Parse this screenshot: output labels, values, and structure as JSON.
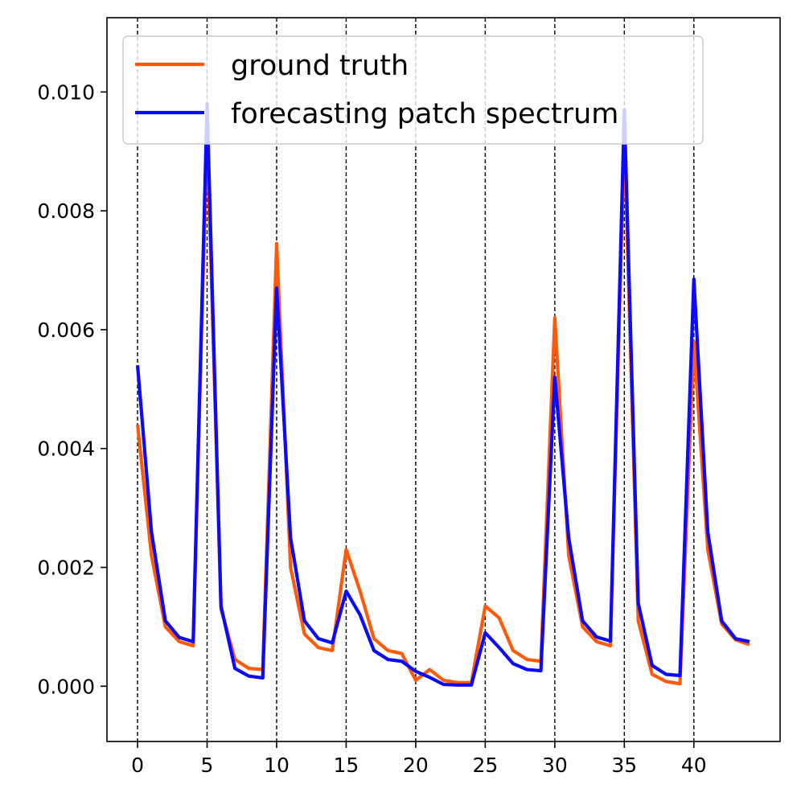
{
  "chart_data": {
    "type": "line",
    "title": "",
    "xlabel": "",
    "ylabel": "",
    "xlim": [
      -2.2,
      46.2
    ],
    "ylim": [
      -0.00093,
      0.01125
    ],
    "xticks": [
      0,
      5,
      10,
      15,
      20,
      25,
      30,
      35,
      40
    ],
    "yticks": [
      0.0,
      0.002,
      0.004,
      0.006,
      0.008,
      0.01
    ],
    "ytick_labels": [
      "0.000",
      "0.002",
      "0.004",
      "0.006",
      "0.008",
      "0.010"
    ],
    "xtick_labels": [
      "0",
      "5",
      "10",
      "15",
      "20",
      "25",
      "30",
      "35",
      "40"
    ],
    "vlines": [
      0,
      5,
      10,
      15,
      20,
      25,
      30,
      35,
      40
    ],
    "legend_position": "top-left",
    "x": [
      0,
      1,
      2,
      3,
      4,
      5,
      6,
      7,
      8,
      9,
      10,
      11,
      12,
      13,
      14,
      15,
      16,
      17,
      18,
      19,
      20,
      21,
      22,
      23,
      24,
      25,
      26,
      27,
      28,
      29,
      30,
      31,
      32,
      33,
      34,
      35,
      36,
      37,
      38,
      39,
      40,
      41,
      42,
      43,
      44
    ],
    "series": [
      {
        "name": "ground truth",
        "color": "#ff5a0a",
        "values": [
          0.0044,
          0.0022,
          0.001,
          0.00075,
          0.00068,
          0.0094,
          0.0013,
          0.00045,
          0.0003,
          0.00028,
          0.00745,
          0.002,
          0.00088,
          0.00065,
          0.0006,
          0.0023,
          0.0016,
          0.0008,
          0.0006,
          0.00055,
          0.0001,
          0.00028,
          0.0001,
          6e-05,
          6e-05,
          0.00135,
          0.00115,
          0.0006,
          0.00045,
          0.00042,
          0.0062,
          0.0022,
          0.001,
          0.00075,
          0.00068,
          0.0093,
          0.0011,
          0.0002,
          8e-05,
          4e-05,
          0.0058,
          0.0023,
          0.00105,
          0.00078,
          0.0007
        ]
      },
      {
        "name": "forecasting patch spectrum",
        "color": "#0a0aff",
        "values": [
          0.0054,
          0.0026,
          0.0011,
          0.00082,
          0.00075,
          0.0098,
          0.00135,
          0.0003,
          0.00017,
          0.00014,
          0.0067,
          0.0025,
          0.0011,
          0.0008,
          0.00073,
          0.0016,
          0.0012,
          0.0006,
          0.00045,
          0.00042,
          0.00025,
          0.00015,
          3e-05,
          2e-05,
          2e-05,
          0.0009,
          0.00065,
          0.00038,
          0.00028,
          0.00026,
          0.0052,
          0.0025,
          0.0011,
          0.00083,
          0.00076,
          0.0097,
          0.0014,
          0.00035,
          0.0002,
          0.00018,
          0.00685,
          0.0026,
          0.0011,
          0.0008,
          0.00075
        ]
      }
    ]
  }
}
